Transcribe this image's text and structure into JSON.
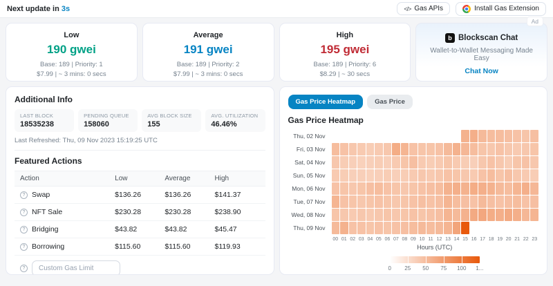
{
  "colors": {
    "accent_blue": "#0784c3",
    "low_green": "#00a186",
    "high_red": "#c02b35",
    "heatmap_max_color": "#e8590c"
  },
  "topbar": {
    "next_update_prefix": "Next update in",
    "countdown": "3s",
    "gas_apis_icon": "</>",
    "gas_apis_label": "Gas APIs",
    "install_extension_label": "Install Gas Extension"
  },
  "gas_cards": [
    {
      "label": "Low",
      "price": "190 gwei",
      "base_priority": "Base: 189 | Priority: 1",
      "cost_time": "$7.99 | ~ 3 mins: 0 secs",
      "color": "#00a186"
    },
    {
      "label": "Average",
      "price": "191 gwei",
      "base_priority": "Base: 189 | Priority: 2",
      "cost_time": "$7.99 | ~ 3 mins: 0 secs",
      "color": "#0784c3"
    },
    {
      "label": "High",
      "price": "195 gwei",
      "base_priority": "Base: 189 | Priority: 6",
      "cost_time": "$8.29 | ~ 30 secs",
      "color": "#c02b35"
    }
  ],
  "ad_card": {
    "badge": "Ad",
    "brand_icon": "b",
    "brand": "Blockscan Chat",
    "tagline": "Wallet-to-Wallet Messaging Made Easy",
    "cta": "Chat Now"
  },
  "additional_info": {
    "title": "Additional Info",
    "stats": [
      {
        "label": "LAST BLOCK",
        "value": "18535238"
      },
      {
        "label": "PENDING QUEUE",
        "value": "158060"
      },
      {
        "label": "AVG BLOCK SIZE",
        "value": "155"
      },
      {
        "label": "AVG. UTILIZATION",
        "value": "46.46%"
      }
    ],
    "last_refreshed": "Last Refreshed: Thu, 09 Nov 2023 15:19:25 UTC"
  },
  "featured_actions": {
    "title": "Featured Actions",
    "columns": [
      "Action",
      "Low",
      "Average",
      "High"
    ],
    "rows": [
      {
        "action": "Swap",
        "low": "$136.26",
        "average": "$136.26",
        "high": "$141.37"
      },
      {
        "action": "NFT Sale",
        "low": "$230.28",
        "average": "$230.28",
        "high": "$238.90"
      },
      {
        "action": "Bridging",
        "low": "$43.82",
        "average": "$43.82",
        "high": "$45.47"
      },
      {
        "action": "Borrowing",
        "low": "$115.60",
        "average": "$115.60",
        "high": "$119.93"
      }
    ],
    "custom_input_placeholder": "Custom Gas Limit"
  },
  "heatmap_panel": {
    "tabs": [
      {
        "label": "Gas Price Heatmap",
        "active": true
      },
      {
        "label": "Gas Price",
        "active": false
      }
    ],
    "title": "Gas Price Heatmap"
  },
  "chart_data": {
    "type": "heatmap",
    "title": "Gas Price Heatmap",
    "xlabel": "Hours (UTC)",
    "x": [
      "00",
      "01",
      "02",
      "03",
      "04",
      "05",
      "06",
      "07",
      "08",
      "09",
      "10",
      "11",
      "12",
      "13",
      "14",
      "15",
      "16",
      "17",
      "18",
      "19",
      "20",
      "21",
      "22",
      "23"
    ],
    "rows": [
      {
        "label": "Thu, 02 Nov",
        "values": [
          null,
          null,
          null,
          null,
          null,
          null,
          null,
          null,
          null,
          null,
          null,
          null,
          null,
          null,
          null,
          58,
          60,
          52,
          50,
          50,
          48,
          46,
          44,
          48
        ]
      },
      {
        "label": "Fri, 03 Nov",
        "values": [
          50,
          46,
          42,
          40,
          38,
          40,
          42,
          62,
          56,
          46,
          44,
          44,
          46,
          52,
          58,
          54,
          50,
          44,
          42,
          46,
          42,
          40,
          42,
          44
        ]
      },
      {
        "label": "Sat, 04 Nov",
        "values": [
          42,
          38,
          36,
          35,
          36,
          38,
          36,
          40,
          44,
          48,
          40,
          38,
          40,
          44,
          40,
          38,
          36,
          42,
          46,
          42,
          38,
          44,
          46,
          42
        ]
      },
      {
        "label": "Sun, 05 Nov",
        "values": [
          40,
          38,
          36,
          36,
          35,
          36,
          38,
          36,
          38,
          40,
          42,
          40,
          42,
          46,
          44,
          42,
          40,
          46,
          50,
          44,
          48,
          42,
          40,
          38
        ]
      },
      {
        "label": "Mon, 06 Nov",
        "values": [
          46,
          44,
          42,
          44,
          48,
          50,
          46,
          44,
          42,
          44,
          46,
          48,
          50,
          58,
          60,
          58,
          62,
          60,
          58,
          52,
          50,
          56,
          60,
          54
        ]
      },
      {
        "label": "Tue, 07 Nov",
        "values": [
          56,
          46,
          44,
          42,
          44,
          46,
          44,
          42,
          44,
          46,
          48,
          46,
          48,
          56,
          50,
          48,
          46,
          52,
          48,
          46,
          48,
          50,
          46,
          48
        ]
      },
      {
        "label": "Wed, 08 Nov",
        "values": [
          44,
          42,
          40,
          42,
          40,
          42,
          44,
          42,
          44,
          46,
          44,
          46,
          48,
          56,
          52,
          58,
          64,
          66,
          62,
          60,
          64,
          60,
          54,
          56
        ]
      },
      {
        "label": "Thu, 09 Nov",
        "values": [
          52,
          58,
          46,
          46,
          44,
          46,
          44,
          46,
          48,
          50,
          52,
          50,
          52,
          56,
          68,
          125,
          null,
          null,
          null,
          null,
          null,
          null,
          null,
          null
        ]
      }
    ],
    "colorscale": {
      "min": 0,
      "max": 125,
      "min_color": "#ffffff",
      "max_color": "#e8590c"
    },
    "legend_ticks": [
      "0",
      "25",
      "50",
      "75",
      "100",
      "1..."
    ]
  }
}
